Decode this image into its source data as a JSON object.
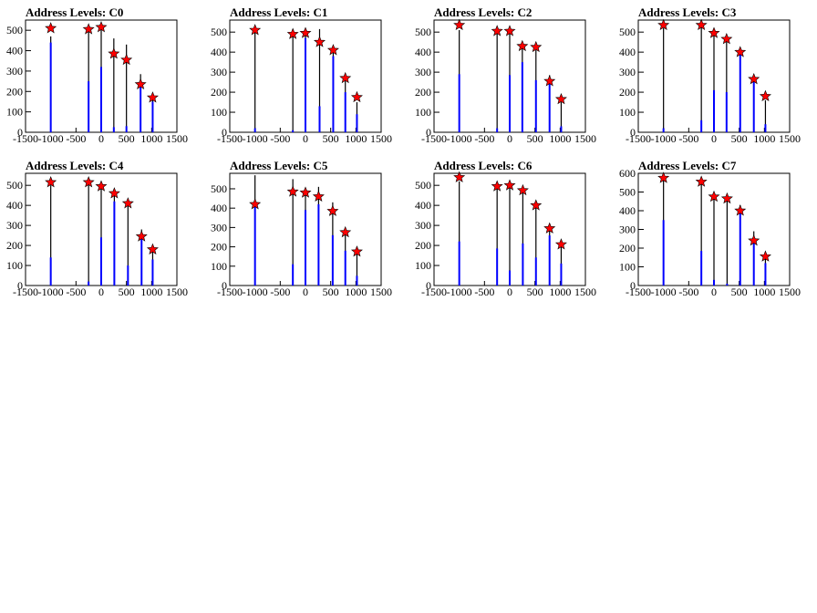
{
  "chart_data": [
    {
      "type": "bar",
      "title": "Address Levels: C0",
      "xlim": [
        -1500,
        1500
      ],
      "ylim": [
        0,
        550
      ],
      "xticks": [
        -1500,
        -1000,
        -500,
        0,
        500,
        1000,
        1500
      ],
      "yticks": [
        0,
        100,
        200,
        300,
        400,
        500
      ],
      "bars": [
        {
          "x": -1000,
          "blue": 440,
          "black": 470
        },
        {
          "x": -250,
          "blue": 250,
          "black": 500
        },
        {
          "x": 0,
          "blue": 320,
          "black": 505
        },
        {
          "x": 250,
          "blue": 25,
          "black": 460
        },
        {
          "x": 500,
          "blue": 30,
          "black": 430
        },
        {
          "x": 780,
          "blue": 250,
          "black": 285
        },
        {
          "x": 1020,
          "blue": 150,
          "black": 170
        }
      ],
      "peaks": [
        {
          "x": -1000,
          "y": 510
        },
        {
          "x": -250,
          "y": 505
        },
        {
          "x": 0,
          "y": 515
        },
        {
          "x": 250,
          "y": 385
        },
        {
          "x": 500,
          "y": 355
        },
        {
          "x": 780,
          "y": 235
        },
        {
          "x": 1020,
          "y": 170
        }
      ]
    },
    {
      "type": "bar",
      "title": "Address Levels: C1",
      "xlim": [
        -1500,
        1500
      ],
      "ylim": [
        0,
        560
      ],
      "xticks": [
        -1500,
        -1000,
        -500,
        0,
        500,
        1000,
        1500
      ],
      "yticks": [
        0,
        100,
        200,
        300,
        400,
        500
      ],
      "bars": [
        {
          "x": -1000,
          "blue": 20,
          "black": 500
        },
        {
          "x": -250,
          "blue": 10,
          "black": 515
        },
        {
          "x": 0,
          "blue": 470,
          "black": 505
        },
        {
          "x": 280,
          "blue": 130,
          "black": 515
        },
        {
          "x": 550,
          "blue": 380,
          "black": 420
        },
        {
          "x": 790,
          "blue": 200,
          "black": 260
        },
        {
          "x": 1020,
          "blue": 90,
          "black": 150
        }
      ],
      "peaks": [
        {
          "x": -1000,
          "y": 510
        },
        {
          "x": -250,
          "y": 490
        },
        {
          "x": 0,
          "y": 495
        },
        {
          "x": 280,
          "y": 450
        },
        {
          "x": 550,
          "y": 410
        },
        {
          "x": 790,
          "y": 270
        },
        {
          "x": 1020,
          "y": 175
        }
      ]
    },
    {
      "type": "bar",
      "title": "Address Levels: C2",
      "xlim": [
        -1500,
        1500
      ],
      "ylim": [
        0,
        560
      ],
      "xticks": [
        -1500,
        -1000,
        -500,
        0,
        500,
        1000,
        1500
      ],
      "yticks": [
        0,
        100,
        200,
        300,
        400,
        500
      ],
      "bars": [
        {
          "x": -1000,
          "blue": 290,
          "black": 510
        },
        {
          "x": -250,
          "blue": 20,
          "black": 500
        },
        {
          "x": 0,
          "blue": 285,
          "black": 505
        },
        {
          "x": 250,
          "blue": 350,
          "black": 420
        },
        {
          "x": 520,
          "blue": 260,
          "black": 410
        },
        {
          "x": 790,
          "blue": 250,
          "black": 285
        },
        {
          "x": 1020,
          "blue": 30,
          "black": 150
        }
      ],
      "peaks": [
        {
          "x": -1000,
          "y": 535
        },
        {
          "x": -250,
          "y": 505
        },
        {
          "x": 0,
          "y": 505
        },
        {
          "x": 250,
          "y": 430
        },
        {
          "x": 520,
          "y": 425
        },
        {
          "x": 790,
          "y": 255
        },
        {
          "x": 1020,
          "y": 165
        }
      ]
    },
    {
      "type": "bar",
      "title": "Address Levels: C3",
      "xlim": [
        -1500,
        1500
      ],
      "ylim": [
        0,
        560
      ],
      "xticks": [
        -1500,
        -1000,
        -500,
        0,
        500,
        1000,
        1500
      ],
      "yticks": [
        0,
        100,
        200,
        300,
        400,
        500
      ],
      "bars": [
        {
          "x": -1000,
          "blue": 20,
          "black": 520
        },
        {
          "x": -250,
          "blue": 60,
          "black": 540
        },
        {
          "x": 0,
          "blue": 210,
          "black": 495
        },
        {
          "x": 250,
          "blue": 200,
          "black": 470
        },
        {
          "x": 520,
          "blue": 400,
          "black": 415
        },
        {
          "x": 790,
          "blue": 250,
          "black": 270
        },
        {
          "x": 1020,
          "blue": 40,
          "black": 160
        }
      ],
      "peaks": [
        {
          "x": -1000,
          "y": 535
        },
        {
          "x": -250,
          "y": 535
        },
        {
          "x": 0,
          "y": 495
        },
        {
          "x": 250,
          "y": 465
        },
        {
          "x": 520,
          "y": 400
        },
        {
          "x": 790,
          "y": 265
        },
        {
          "x": 1020,
          "y": 180
        }
      ]
    },
    {
      "type": "bar",
      "title": "Address Levels: C4",
      "xlim": [
        -1500,
        1500
      ],
      "ylim": [
        0,
        560
      ],
      "xticks": [
        -1500,
        -1000,
        -500,
        0,
        500,
        1000,
        1500
      ],
      "yticks": [
        0,
        100,
        200,
        300,
        400,
        500
      ],
      "bars": [
        {
          "x": -1000,
          "blue": 140,
          "black": 500
        },
        {
          "x": -250,
          "blue": 20,
          "black": 520
        },
        {
          "x": 0,
          "blue": 240,
          "black": 500
        },
        {
          "x": 260,
          "blue": 420,
          "black": 465
        },
        {
          "x": 530,
          "blue": 100,
          "black": 420
        },
        {
          "x": 800,
          "blue": 250,
          "black": 280
        },
        {
          "x": 1020,
          "blue": 130,
          "black": 170
        }
      ],
      "peaks": [
        {
          "x": -1000,
          "y": 515
        },
        {
          "x": -250,
          "y": 515
        },
        {
          "x": 0,
          "y": 495
        },
        {
          "x": 260,
          "y": 460
        },
        {
          "x": 530,
          "y": 410
        },
        {
          "x": 800,
          "y": 245
        },
        {
          "x": 1020,
          "y": 180
        }
      ]
    },
    {
      "type": "bar",
      "title": "Address Levels: C5",
      "xlim": [
        -1500,
        1500
      ],
      "ylim": [
        0,
        580
      ],
      "xticks": [
        -1500,
        -1000,
        -500,
        0,
        500,
        1000,
        1500
      ],
      "yticks": [
        0,
        100,
        200,
        300,
        400,
        500
      ],
      "bars": [
        {
          "x": -1000,
          "blue": 420,
          "black": 570
        },
        {
          "x": -250,
          "blue": 110,
          "black": 550
        },
        {
          "x": 0,
          "blue": 390,
          "black": 500
        },
        {
          "x": 260,
          "blue": 420,
          "black": 510
        },
        {
          "x": 540,
          "blue": 260,
          "black": 430
        },
        {
          "x": 790,
          "blue": 180,
          "black": 290
        },
        {
          "x": 1020,
          "blue": 50,
          "black": 170
        }
      ],
      "peaks": [
        {
          "x": -1000,
          "y": 420
        },
        {
          "x": -250,
          "y": 485
        },
        {
          "x": 0,
          "y": 480
        },
        {
          "x": 260,
          "y": 460
        },
        {
          "x": 540,
          "y": 385
        },
        {
          "x": 790,
          "y": 275
        },
        {
          "x": 1020,
          "y": 175
        }
      ]
    },
    {
      "type": "bar",
      "title": "Address Levels: C6",
      "xlim": [
        -1500,
        1500
      ],
      "ylim": [
        0,
        560
      ],
      "xticks": [
        -1500,
        -1000,
        -500,
        0,
        500,
        1000,
        1500
      ],
      "yticks": [
        0,
        100,
        200,
        300,
        400,
        500
      ],
      "bars": [
        {
          "x": -1000,
          "blue": 220,
          "black": 520
        },
        {
          "x": -250,
          "blue": 185,
          "black": 510
        },
        {
          "x": 0,
          "blue": 75,
          "black": 500
        },
        {
          "x": 260,
          "blue": 210,
          "black": 490
        },
        {
          "x": 520,
          "blue": 140,
          "black": 415
        },
        {
          "x": 790,
          "blue": 250,
          "black": 275
        },
        {
          "x": 1020,
          "blue": 110,
          "black": 210
        }
      ],
      "peaks": [
        {
          "x": -1000,
          "y": 540
        },
        {
          "x": -250,
          "y": 495
        },
        {
          "x": 0,
          "y": 500
        },
        {
          "x": 260,
          "y": 475
        },
        {
          "x": 520,
          "y": 400
        },
        {
          "x": 790,
          "y": 285
        },
        {
          "x": 1020,
          "y": 205
        }
      ]
    },
    {
      "type": "bar",
      "title": "Address Levels: C7",
      "xlim": [
        -1500,
        1500
      ],
      "ylim": [
        0,
        600
      ],
      "xticks": [
        -1500,
        -1000,
        -500,
        0,
        500,
        1000,
        1500
      ],
      "yticks": [
        0,
        100,
        200,
        300,
        400,
        500,
        600
      ],
      "bars": [
        {
          "x": -1000,
          "blue": 350,
          "black": 580
        },
        {
          "x": -250,
          "blue": 185,
          "black": 560
        },
        {
          "x": 0,
          "blue": 30,
          "black": 490
        },
        {
          "x": 260,
          "blue": 10,
          "black": 470
        },
        {
          "x": 520,
          "blue": 420,
          "black": 430
        },
        {
          "x": 790,
          "blue": 240,
          "black": 290
        },
        {
          "x": 1020,
          "blue": 120,
          "black": 170
        }
      ],
      "peaks": [
        {
          "x": -1000,
          "y": 575
        },
        {
          "x": -250,
          "y": 555
        },
        {
          "x": 0,
          "y": 475
        },
        {
          "x": 260,
          "y": 465
        },
        {
          "x": 520,
          "y": 400
        },
        {
          "x": 790,
          "y": 240
        },
        {
          "x": 1020,
          "y": 155
        }
      ]
    }
  ],
  "colors": {
    "histogram_line": "#000000",
    "histogram_fill": "#0000ff",
    "peak_marker": "#ff0000",
    "axis": "#000000"
  }
}
